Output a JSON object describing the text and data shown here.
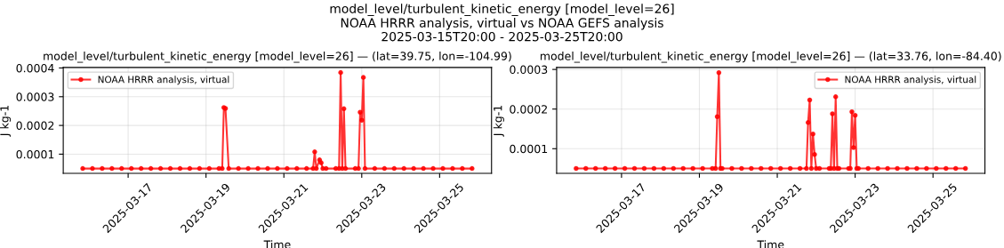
{
  "chart_data": [
    {
      "type": "line",
      "title": "model_level/turbulent_kinetic_energy [model_level=26] — (lat=39.75, lon=-104.99)",
      "annotations": [
        "model_level/turbulent_kinetic_energy [model_level=26]\nNOAA HRRR analysis, virtual vs NOAA GEFS analysis\n2025-03-15T20:00 - 2025-03-25T20:00"
      ],
      "xlabel": "Time",
      "ylabel": "J kg-1",
      "xlim": [
        "2025-03-15T08:00",
        "2025-03-26T08:00"
      ],
      "xticks": [
        "2025-03-17",
        "2025-03-19",
        "2025-03-21",
        "2025-03-23",
        "2025-03-25"
      ],
      "ylim": [
        3.32e-05,
        0.0004018
      ],
      "yticks": [
        0.0001,
        0.0002,
        0.0003,
        0.0004
      ],
      "grid": true,
      "legend": "top left",
      "marker": "circle",
      "line_style": "solid",
      "series": [
        {
          "name": "NOAA HRRR analysis, virtual",
          "color": "#ff0000",
          "x": [
            "2025-03-15T20:00",
            "2025-03-16T02:00",
            "2025-03-16T08:00",
            "2025-03-16T14:00",
            "2025-03-16T20:00",
            "2025-03-17T02:00",
            "2025-03-17T08:00",
            "2025-03-17T14:00",
            "2025-03-17T20:00",
            "2025-03-18T02:00",
            "2025-03-18T08:00",
            "2025-03-18T14:00",
            "2025-03-18T20:00",
            "2025-03-19T02:00",
            "2025-03-19T08:00",
            "2025-03-19T10:00",
            "2025-03-19T11:00",
            "2025-03-19T12:00",
            "2025-03-19T14:00",
            "2025-03-19T20:00",
            "2025-03-20T02:00",
            "2025-03-20T08:00",
            "2025-03-20T14:00",
            "2025-03-20T20:00",
            "2025-03-21T02:00",
            "2025-03-21T08:00",
            "2025-03-21T14:00",
            "2025-03-21T18:00",
            "2025-03-21T19:00",
            "2025-03-21T20:00",
            "2025-03-21T22:00",
            "2025-03-21T23:00",
            "2025-03-22T00:00",
            "2025-03-22T02:00",
            "2025-03-22T08:00",
            "2025-03-22T10:00",
            "2025-03-22T11:00",
            "2025-03-22T12:00",
            "2025-03-22T13:00",
            "2025-03-22T14:00",
            "2025-03-22T20:00",
            "2025-03-22T22:00",
            "2025-03-22T23:00",
            "2025-03-23T00:00",
            "2025-03-23T01:00",
            "2025-03-23T02:00",
            "2025-03-23T08:00",
            "2025-03-23T14:00",
            "2025-03-23T20:00",
            "2025-03-24T02:00",
            "2025-03-24T08:00",
            "2025-03-24T14:00",
            "2025-03-24T20:00",
            "2025-03-25T02:00",
            "2025-03-25T08:00",
            "2025-03-25T14:00",
            "2025-03-25T20:00"
          ],
          "values": [
            5e-05,
            5e-05,
            5e-05,
            5e-05,
            5e-05,
            5e-05,
            5e-05,
            5e-05,
            5e-05,
            5e-05,
            5e-05,
            5e-05,
            5e-05,
            5e-05,
            5e-05,
            5e-05,
            0.000262,
            0.000259,
            5e-05,
            5e-05,
            5e-05,
            5e-05,
            5e-05,
            5e-05,
            5e-05,
            5e-05,
            5e-05,
            5e-05,
            0.000108,
            5e-05,
            8e-05,
            7e-05,
            5e-05,
            5e-05,
            5e-05,
            5e-05,
            0.000384,
            5e-05,
            0.000258,
            5e-05,
            5e-05,
            5e-05,
            0.000246,
            0.000218,
            0.000367,
            5e-05,
            5e-05,
            5e-05,
            5e-05,
            5e-05,
            5e-05,
            5e-05,
            5e-05,
            5e-05,
            5e-05,
            5e-05,
            5e-05
          ]
        }
      ]
    },
    {
      "type": "line",
      "title": "model_level/turbulent_kinetic_energy [model_level=26] — (lat=33.76, lon=-84.40)",
      "xlabel": "Time",
      "ylabel": "J kg-1",
      "xlim": [
        "2025-03-15T08:00",
        "2025-03-26T08:00"
      ],
      "xticks": [
        "2025-03-17",
        "2025-03-19",
        "2025-03-21",
        "2025-03-23",
        "2025-03-25"
      ],
      "ylim": [
        3.78e-05,
        0.000305
      ],
      "yticks": [
        0.0001,
        0.0002,
        0.0003
      ],
      "grid": true,
      "legend": "top right",
      "marker": "circle",
      "line_style": "solid",
      "series": [
        {
          "name": "NOAA HRRR analysis, virtual",
          "color": "#ff0000",
          "x": [
            "2025-03-15T20:00",
            "2025-03-16T02:00",
            "2025-03-16T08:00",
            "2025-03-16T14:00",
            "2025-03-16T20:00",
            "2025-03-17T02:00",
            "2025-03-17T08:00",
            "2025-03-17T14:00",
            "2025-03-17T20:00",
            "2025-03-18T02:00",
            "2025-03-18T08:00",
            "2025-03-18T14:00",
            "2025-03-18T20:00",
            "2025-03-19T02:00",
            "2025-03-19T08:00",
            "2025-03-19T10:00",
            "2025-03-19T11:00",
            "2025-03-19T12:00",
            "2025-03-19T13:00",
            "2025-03-19T14:00",
            "2025-03-19T20:00",
            "2025-03-20T02:00",
            "2025-03-20T08:00",
            "2025-03-20T14:00",
            "2025-03-20T20:00",
            "2025-03-21T02:00",
            "2025-03-21T08:00",
            "2025-03-21T14:00",
            "2025-03-21T18:00",
            "2025-03-21T19:00",
            "2025-03-21T20:00",
            "2025-03-21T21:00",
            "2025-03-21T22:00",
            "2025-03-21T23:00",
            "2025-03-22T00:00",
            "2025-03-22T02:00",
            "2025-03-22T08:00",
            "2025-03-22T09:00",
            "2025-03-22T10:00",
            "2025-03-22T11:00",
            "2025-03-22T12:00",
            "2025-03-22T13:00",
            "2025-03-22T14:00",
            "2025-03-22T20:00",
            "2025-03-22T21:00",
            "2025-03-22T22:00",
            "2025-03-22T23:00",
            "2025-03-23T00:00",
            "2025-03-23T01:00",
            "2025-03-23T02:00",
            "2025-03-23T08:00",
            "2025-03-23T14:00",
            "2025-03-23T20:00",
            "2025-03-24T02:00",
            "2025-03-24T08:00",
            "2025-03-24T14:00",
            "2025-03-24T20:00",
            "2025-03-25T02:00",
            "2025-03-25T08:00",
            "2025-03-25T14:00",
            "2025-03-25T20:00"
          ],
          "values": [
            5e-05,
            5e-05,
            5e-05,
            5e-05,
            5e-05,
            5e-05,
            5e-05,
            5e-05,
            5e-05,
            5e-05,
            5e-05,
            5e-05,
            5e-05,
            5e-05,
            5e-05,
            5e-05,
            0.000181,
            0.000292,
            5e-05,
            5e-05,
            5e-05,
            5e-05,
            5e-05,
            5e-05,
            5e-05,
            5e-05,
            5e-05,
            5e-05,
            5e-05,
            0.000166,
            0.000223,
            5e-05,
            0.000137,
            8.55e-05,
            5e-05,
            5e-05,
            5e-05,
            5e-05,
            0.000188,
            5e-05,
            0.000231,
            5e-05,
            5e-05,
            5e-05,
            5e-05,
            0.000193,
            0.000103,
            0.000184,
            5e-05,
            5e-05,
            5e-05,
            5e-05,
            5e-05,
            5e-05,
            5e-05,
            5e-05,
            5e-05,
            5e-05,
            5e-05,
            5e-05,
            5e-05
          ]
        }
      ]
    }
  ]
}
